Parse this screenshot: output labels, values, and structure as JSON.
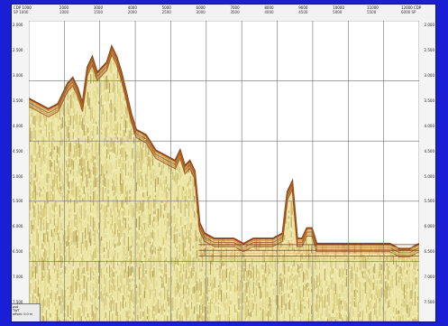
{
  "header": {
    "labels": [
      {
        "top": "CDP 1000",
        "sub": "SP 1000"
      },
      {
        "top": "2000",
        "sub": "1000"
      },
      {
        "top": "3000",
        "sub": "1500"
      },
      {
        "top": "4000",
        "sub": "2000"
      },
      {
        "top": "5000",
        "sub": "2500"
      },
      {
        "top": "6000",
        "sub": "3000"
      },
      {
        "top": "7000",
        "sub": "3500"
      },
      {
        "top": "8000",
        "sub": "4000"
      },
      {
        "top": "9000",
        "sub": "4500"
      },
      {
        "top": "10000",
        "sub": "5000"
      },
      {
        "top": "11000",
        "sub": "5500"
      },
      {
        "top": "12000 CDP",
        "sub": "6000 SP"
      }
    ]
  },
  "left_scale": [
    "2.000",
    "2.500",
    "3.000",
    "3.500",
    "4.000",
    "4.500",
    "5.000",
    "5.500",
    "6.000",
    "6.500",
    "7.000",
    "7.500"
  ],
  "right_scale": [
    "2.000",
    "2.500",
    "3.000",
    "3.500",
    "4.000",
    "4.500",
    "5.000",
    "5.500",
    "6.000",
    "6.500",
    "7.000",
    "7.500"
  ],
  "info_box": {
    "line1": "psd",
    "line2": "TWT",
    "line3": "offset: 0.0 m"
  },
  "colors": {
    "background": "#1a1fd6",
    "seismic_light": "#f1ecb0",
    "seismic_mid": "#c9b860",
    "seismic_dark": "#8a3a10",
    "grid": "#6f6f6f"
  },
  "chart_data": {
    "type": "seismic-section",
    "seafloor_twt": [
      [
        0,
        3.5
      ],
      [
        2,
        3.6
      ],
      [
        4,
        3.7
      ],
      [
        6,
        3.6
      ],
      [
        8,
        3.2
      ],
      [
        9,
        3.1
      ],
      [
        10,
        3.3
      ],
      [
        11,
        3.6
      ],
      [
        12,
        2.9
      ],
      [
        13,
        2.7
      ],
      [
        14,
        3.0
      ],
      [
        15,
        2.9
      ],
      [
        16,
        2.8
      ],
      [
        17,
        2.5
      ],
      [
        18,
        2.7
      ],
      [
        19,
        3.0
      ],
      [
        20,
        3.4
      ],
      [
        21,
        3.8
      ],
      [
        22,
        4.1
      ],
      [
        24,
        4.2
      ],
      [
        26,
        4.5
      ],
      [
        28,
        4.6
      ],
      [
        30,
        4.7
      ],
      [
        31,
        4.5
      ],
      [
        32,
        4.8
      ],
      [
        33,
        4.7
      ],
      [
        34,
        4.9
      ],
      [
        35,
        5.9
      ],
      [
        36,
        6.1
      ],
      [
        38,
        6.2
      ],
      [
        40,
        6.2
      ],
      [
        42,
        6.2
      ],
      [
        44,
        6.3
      ],
      [
        46,
        6.2
      ],
      [
        48,
        6.2
      ],
      [
        50,
        6.2
      ],
      [
        52,
        6.1
      ],
      [
        53,
        5.3
      ],
      [
        54,
        5.1
      ],
      [
        55,
        6.2
      ],
      [
        56,
        6.2
      ],
      [
        57,
        6.0
      ],
      [
        58,
        6.0
      ],
      [
        59,
        6.3
      ],
      [
        60,
        6.3
      ],
      [
        62,
        6.3
      ],
      [
        64,
        6.3
      ],
      [
        66,
        6.3
      ],
      [
        68,
        6.3
      ],
      [
        70,
        6.3
      ],
      [
        72,
        6.3
      ],
      [
        74,
        6.3
      ],
      [
        76,
        6.4
      ],
      [
        78,
        6.4
      ],
      [
        80,
        6.3
      ]
    ],
    "xlim": [
      0,
      80
    ],
    "ylim": [
      7.8,
      2.0
    ]
  }
}
